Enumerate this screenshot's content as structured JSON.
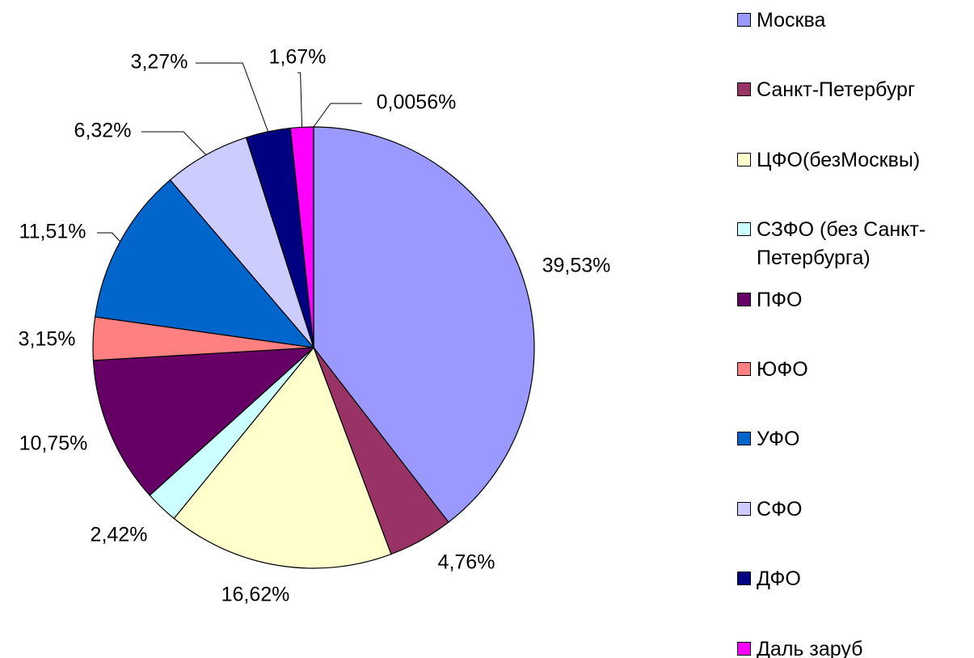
{
  "chart_data": {
    "type": "pie",
    "categories": [
      "Москва",
      "Санкт-Петербург",
      "ЦФО(безМосквы)",
      "СЗФО (без Санкт-Петербурга)",
      "ПФО",
      "ЮФО",
      "УФО",
      "СФО",
      "ДФО",
      "Даль заруб",
      null
    ],
    "values": [
      39.53,
      4.76,
      16.62,
      2.42,
      10.75,
      3.15,
      11.51,
      6.32,
      3.27,
      1.67,
      0.0056
    ],
    "value_labels": [
      "39,53%",
      "4,76%",
      "16,62%",
      "2,42%",
      "10,75%",
      "3,15%",
      "11,51%",
      "6,32%",
      "3,27%",
      "1,67%",
      "0,0056%"
    ],
    "colors": [
      "#9999ff",
      "#993366",
      "#ffffcc",
      "#ccffff",
      "#660066",
      "#ff8080",
      "#0066cc",
      "#ccccff",
      "#000080",
      "#ff00ff",
      "#ffff00"
    ],
    "legend": "right"
  }
}
